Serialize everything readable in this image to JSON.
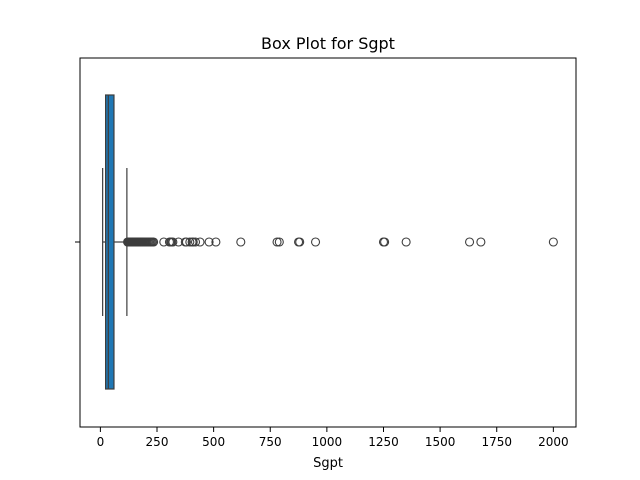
{
  "chart_data": {
    "type": "box",
    "orientation": "horizontal",
    "title": "Box Plot for Sgpt",
    "xlabel": "Sgpt",
    "ylabel": "",
    "xlim": [
      -90,
      2100
    ],
    "xticks": [
      0,
      250,
      500,
      750,
      1000,
      1250,
      1500,
      1750,
      2000
    ],
    "box": {
      "whisker_low": 10,
      "q1": 23,
      "median": 35,
      "q3": 60,
      "whisker_high": 117
    },
    "outliers": [
      120,
      122,
      125,
      128,
      130,
      133,
      135,
      138,
      140,
      142,
      145,
      148,
      150,
      152,
      155,
      158,
      160,
      163,
      165,
      168,
      170,
      172,
      175,
      178,
      180,
      182,
      185,
      188,
      190,
      195,
      200,
      205,
      210,
      215,
      220,
      225,
      230,
      235,
      280,
      305,
      310,
      315,
      320,
      345,
      375,
      380,
      395,
      405,
      410,
      420,
      440,
      480,
      510,
      620,
      780,
      790,
      875,
      880,
      950,
      1250,
      1255,
      1350,
      1630,
      1680,
      2000
    ],
    "color": "#1f77b4",
    "grid": false,
    "legend": "none"
  }
}
